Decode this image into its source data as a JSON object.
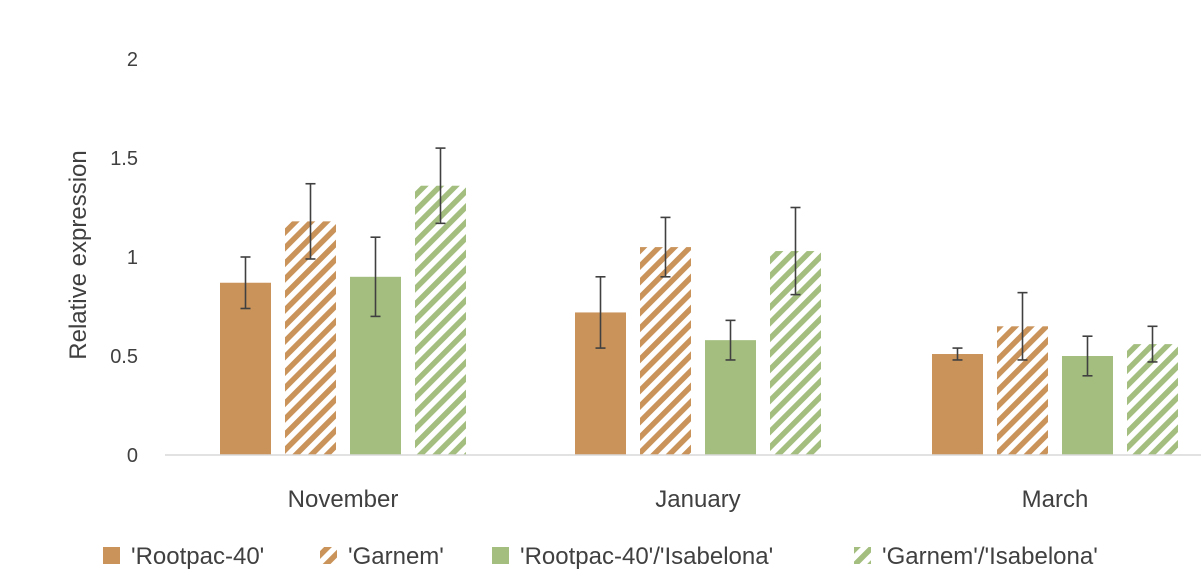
{
  "chart_data": {
    "type": "bar",
    "title": "",
    "xlabel": "",
    "ylabel": "Relative expression",
    "ylim": [
      0,
      2
    ],
    "yticks": [
      0,
      0.5,
      1,
      1.5,
      2
    ],
    "ytick_labels": [
      "0",
      "0.5",
      "1",
      "1.5",
      "2"
    ],
    "grid": false,
    "legend_position": "bottom",
    "categories": [
      "November",
      "January",
      "March"
    ],
    "series": [
      {
        "name": "'Rootpac-40'",
        "color": "#c9935a",
        "pattern": "solid",
        "values": [
          0.87,
          0.72,
          0.51
        ],
        "errors": [
          0.13,
          0.18,
          0.03
        ]
      },
      {
        "name": "'Garnem'",
        "color": "#c9935a",
        "pattern": "hatched",
        "values": [
          1.18,
          1.05,
          0.65
        ],
        "errors": [
          0.19,
          0.15,
          0.17
        ]
      },
      {
        "name": "'Rootpac-40'/'Isabelona'",
        "color": "#a3be7f",
        "pattern": "solid",
        "values": [
          0.9,
          0.58,
          0.5
        ],
        "errors": [
          0.2,
          0.1,
          0.1
        ]
      },
      {
        "name": "'Garnem'/'Isabelona'",
        "color": "#a3be7f",
        "pattern": "hatched",
        "values": [
          1.36,
          1.03,
          0.56
        ],
        "errors": [
          0.19,
          0.22,
          0.09
        ]
      }
    ]
  }
}
